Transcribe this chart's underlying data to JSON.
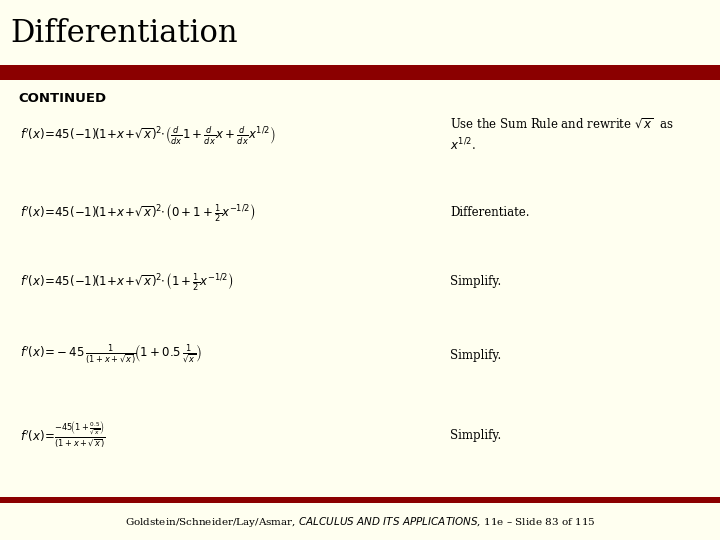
{
  "title": "Differentiation",
  "title_color": "#000000",
  "title_bg_color": "#FFFFF0",
  "bar_color": "#8B0000",
  "main_bg_color": "#FFFFF0",
  "continued_label": "CONTINUED",
  "footer_normal": "Goldstein/Schneider/Lay/Asmar, ",
  "footer_italic": "CALCULUS AND ITS APPLICATIONS",
  "footer_end": ", 11e – Slide 83 of 115",
  "footer_bg": "#FFFFF0",
  "footer_bar_color": "#8B0000"
}
